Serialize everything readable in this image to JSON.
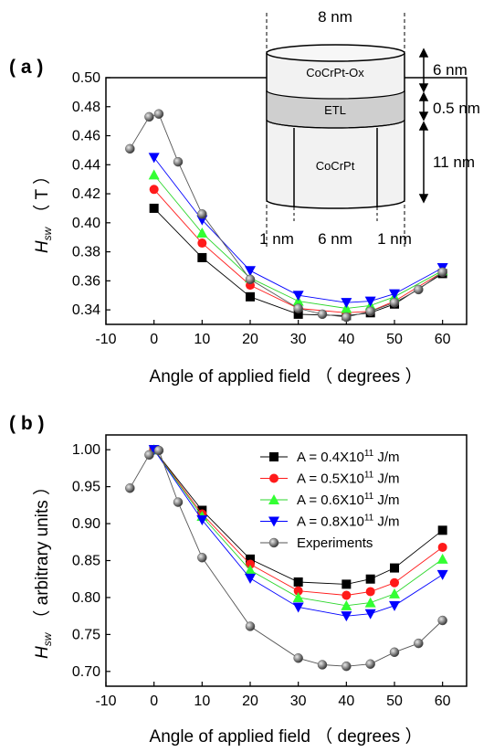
{
  "chart_data": [
    {
      "type": "line",
      "panel_label": "( a )",
      "xlabel": "Angle of applied field （ degrees ）",
      "ylabel_main": "H",
      "ylabel_sub": "sw",
      "ylabel_rest": "（ T ）",
      "xlim": [
        -10,
        65
      ],
      "ylim": [
        0.33,
        0.5
      ],
      "xticks": [
        -10,
        0,
        10,
        20,
        30,
        40,
        50,
        60
      ],
      "yticks": [
        0.34,
        0.36,
        0.38,
        0.4,
        0.42,
        0.44,
        0.46,
        0.48,
        0.5
      ],
      "series": [
        {
          "marker": "square",
          "color": "#000000",
          "x": [
            0,
            10,
            20,
            30,
            40,
            45,
            50,
            60
          ],
          "y": [
            0.41,
            0.376,
            0.349,
            0.337,
            0.336,
            0.338,
            0.344,
            0.365
          ]
        },
        {
          "marker": "circle",
          "color": "#ff1a1a",
          "x": [
            0,
            10,
            20,
            30,
            40,
            45,
            50,
            60
          ],
          "y": [
            0.423,
            0.386,
            0.357,
            0.341,
            0.338,
            0.339,
            0.346,
            0.366
          ]
        },
        {
          "marker": "triangle-up",
          "color": "#33ff33",
          "x": [
            0,
            10,
            20,
            30,
            40,
            45,
            50,
            60
          ],
          "y": [
            0.433,
            0.393,
            0.362,
            0.346,
            0.341,
            0.343,
            0.349,
            0.367
          ]
        },
        {
          "marker": "triangle-down",
          "color": "#0000ff",
          "x": [
            0,
            10,
            20,
            30,
            40,
            45,
            50,
            60
          ],
          "y": [
            0.445,
            0.402,
            0.367,
            0.35,
            0.345,
            0.346,
            0.351,
            0.369
          ]
        },
        {
          "marker": "ball",
          "color": "#808080",
          "x": [
            -5,
            -1,
            1,
            5,
            10,
            20,
            30,
            35,
            40,
            45,
            50,
            55,
            60
          ],
          "y": [
            0.451,
            0.473,
            0.475,
            0.442,
            0.406,
            0.361,
            0.341,
            0.337,
            0.335,
            0.339,
            0.345,
            0.354,
            0.366
          ]
        }
      ],
      "inset": {
        "top_width": "8 nm",
        "layers": [
          "CoCrPt-Ox",
          "ETL",
          "CoCrPt"
        ],
        "thickness": [
          "6 nm",
          "0.5 nm",
          "11 nm"
        ],
        "bottom": [
          "1 nm",
          "6 nm",
          "1 nm"
        ]
      }
    },
    {
      "type": "line",
      "panel_label": "( b )",
      "xlabel": "Angle of applied field （ degrees ）",
      "ylabel_main": "H",
      "ylabel_sub": "sw",
      "ylabel_rest": "（ arbitrary units ）",
      "xlim": [
        -10,
        65
      ],
      "ylim": [
        0.68,
        1.02
      ],
      "xticks": [
        -10,
        0,
        10,
        20,
        30,
        40,
        50,
        60
      ],
      "yticks": [
        0.7,
        0.75,
        0.8,
        0.85,
        0.9,
        0.95,
        1.0
      ],
      "legend_position": "top-right",
      "series": [
        {
          "marker": "square",
          "color": "#000000",
          "legend": {
            "pre": "A = 0.4X10",
            "sup": "11",
            "post": " J/m"
          },
          "x": [
            0,
            10,
            20,
            30,
            40,
            45,
            50,
            60
          ],
          "y": [
            1.0,
            0.918,
            0.852,
            0.821,
            0.818,
            0.825,
            0.84,
            0.891
          ]
        },
        {
          "marker": "circle",
          "color": "#ff1a1a",
          "legend": {
            "pre": "A = 0.5X10",
            "sup": "11",
            "post": " J/m"
          },
          "x": [
            0,
            10,
            20,
            30,
            40,
            45,
            50,
            60
          ],
          "y": [
            1.0,
            0.913,
            0.845,
            0.809,
            0.803,
            0.808,
            0.82,
            0.868
          ]
        },
        {
          "marker": "triangle-up",
          "color": "#33ff33",
          "legend": {
            "pre": "A = 0.6X10",
            "sup": "11",
            "post": " J/m"
          },
          "x": [
            0,
            10,
            20,
            30,
            40,
            45,
            50,
            60
          ],
          "y": [
            1.0,
            0.91,
            0.837,
            0.8,
            0.789,
            0.793,
            0.805,
            0.852
          ]
        },
        {
          "marker": "triangle-down",
          "color": "#0000ff",
          "legend": {
            "pre": "A = 0.8X10",
            "sup": "11",
            "post": " J/m"
          },
          "x": [
            0,
            10,
            20,
            30,
            40,
            45,
            50,
            60
          ],
          "y": [
            1.0,
            0.905,
            0.826,
            0.787,
            0.775,
            0.778,
            0.789,
            0.831
          ]
        },
        {
          "marker": "ball",
          "color": "#808080",
          "legend": {
            "pre": "Experiments",
            "sup": "",
            "post": ""
          },
          "x": [
            -5,
            -1,
            1,
            5,
            10,
            20,
            30,
            35,
            40,
            45,
            50,
            55,
            60
          ],
          "y": [
            0.948,
            0.993,
            0.999,
            0.929,
            0.854,
            0.761,
            0.718,
            0.709,
            0.707,
            0.71,
            0.726,
            0.738,
            0.769
          ]
        }
      ]
    }
  ]
}
